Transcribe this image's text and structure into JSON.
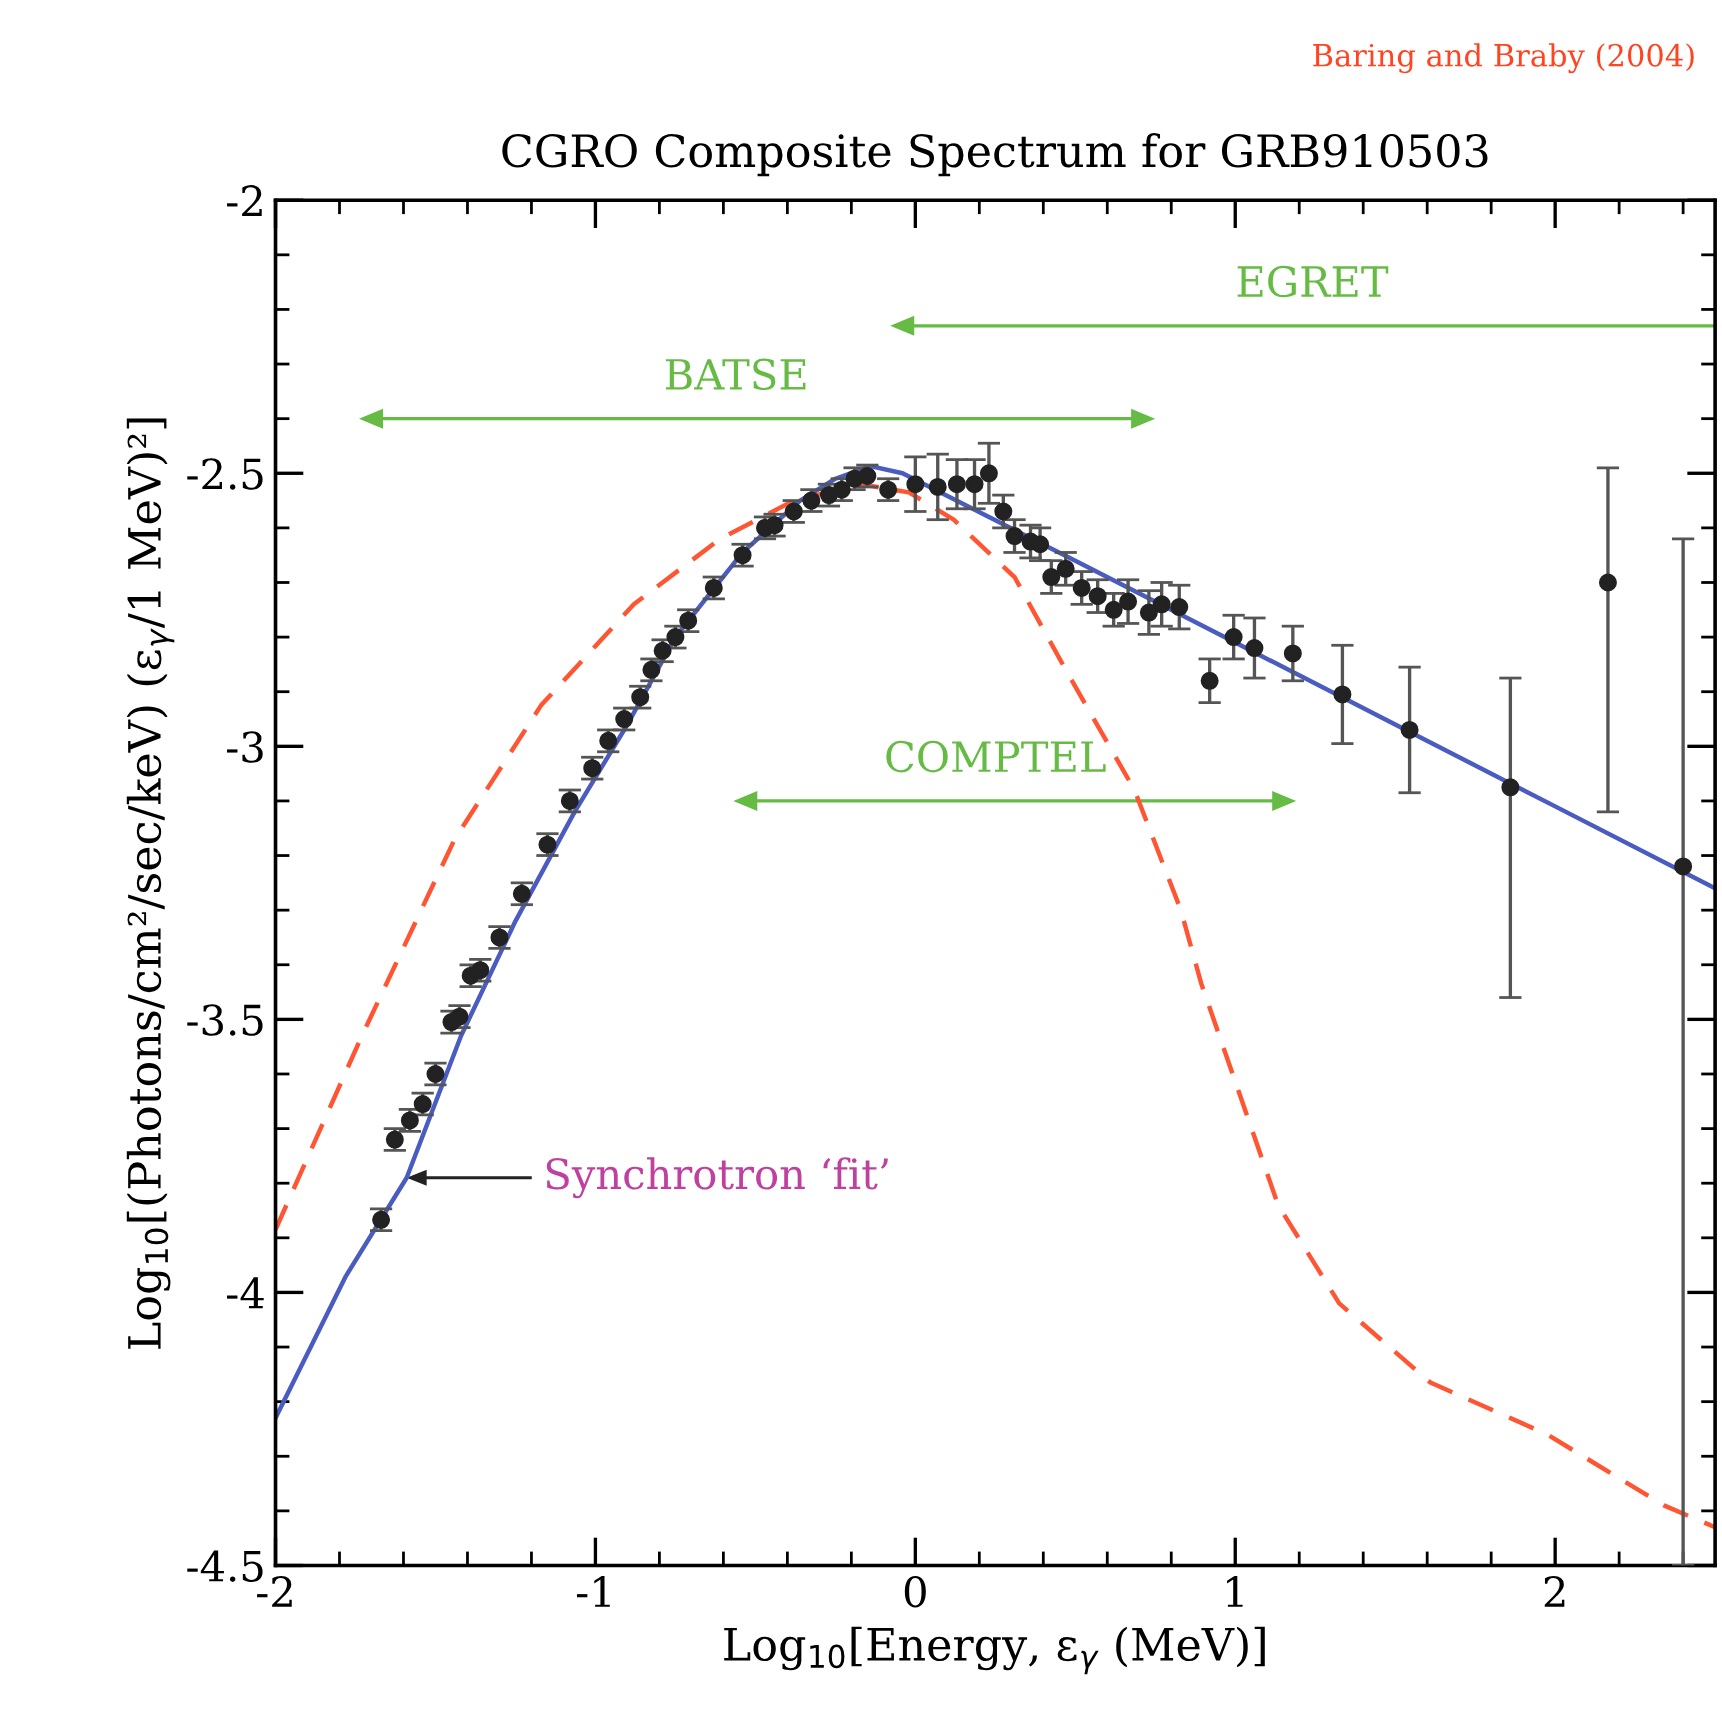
{
  "chart_data": {
    "type": "scatter",
    "title": "CGRO Composite Spectrum for GRB910503",
    "xlabel": "Log$_{10}$[Energy, ε$_{γ}$ (MeV)]",
    "ylabel": "Log$_{10}$[(Photons/cm²/sec/keV) (ε$_{γ}$/1 MeV)²]",
    "xlim": [
      -2,
      2.5
    ],
    "ylim": [
      -4.5,
      -2
    ],
    "xticks": [
      -2,
      -1,
      0,
      1,
      2
    ],
    "yticks": [
      -4.5,
      -4,
      -3.5,
      -3,
      -2.5,
      -2
    ],
    "grid": false,
    "series": [
      {
        "type": "line",
        "color": "#ff5533",
        "line_style": "dashed",
        "marker": "none",
        "x": [
          -2,
          -1.73,
          -1.44,
          -1.17,
          -0.88,
          -0.61,
          -0.38,
          -0.17,
          -0.02,
          0.12,
          0.31,
          0.475,
          0.685,
          0.83,
          0.894,
          1.134,
          1.325,
          1.61,
          1.975,
          2.34,
          2.5
        ],
        "values": [
          -3.885,
          -3.53,
          -3.17,
          -2.925,
          -2.74,
          -2.62,
          -2.55,
          -2.52,
          -2.535,
          -2.585,
          -2.69,
          -2.865,
          -3.08,
          -3.3,
          -3.435,
          -3.84,
          -4.02,
          -4.165,
          -4.26,
          -4.39,
          -4.43
        ]
      },
      {
        "type": "line",
        "color": "#4a5cc0",
        "line_style": "solid",
        "marker": "none",
        "x": [
          -2,
          -1.78,
          -1.59,
          -1.42,
          -1.25,
          -1.065,
          -0.9,
          -0.75,
          -0.54,
          -0.36,
          -0.25,
          -0.14,
          -0.04,
          0.5,
          1.0,
          1.5,
          2.0,
          2.5
        ],
        "values": [
          -4.23,
          -3.97,
          -3.79,
          -3.53,
          -3.32,
          -3.12,
          -2.96,
          -2.8,
          -2.645,
          -2.55,
          -2.51,
          -2.487,
          -2.5,
          -2.66,
          -2.81,
          -2.96,
          -3.11,
          -3.26
        ]
      },
      {
        "type": "scatter",
        "color": "#222222",
        "marker": "circle",
        "x": [
          -1.67,
          -1.627,
          -1.58,
          -1.54,
          -1.5,
          -1.45,
          -1.425,
          -1.39,
          -1.36,
          -1.3,
          -1.23,
          -1.15,
          -1.08,
          -1.01,
          -0.96,
          -0.91,
          -0.86,
          -0.825,
          -0.79,
          -0.75,
          -0.71,
          -0.63,
          -0.54,
          -0.47,
          -0.44,
          -0.38,
          -0.325,
          -0.27,
          -0.23,
          -0.19,
          -0.15,
          -0.085,
          0.0,
          0.07,
          0.13,
          0.185,
          0.23,
          0.275,
          0.31,
          0.36,
          0.39,
          0.425,
          0.47,
          0.52,
          0.57,
          0.62,
          0.665,
          0.73,
          0.77,
          0.825,
          0.92,
          0.995,
          1.06,
          1.18,
          1.335,
          1.545,
          1.86,
          2.165,
          2.4
        ],
        "values": [
          -3.867,
          -3.72,
          -3.685,
          -3.655,
          -3.6,
          -3.505,
          -3.495,
          -3.42,
          -3.41,
          -3.35,
          -3.27,
          -3.18,
          -3.1,
          -3.04,
          -2.99,
          -2.95,
          -2.91,
          -2.86,
          -2.825,
          -2.8,
          -2.77,
          -2.71,
          -2.65,
          -2.6,
          -2.595,
          -2.57,
          -2.55,
          -2.54,
          -2.53,
          -2.51,
          -2.505,
          -2.53,
          -2.52,
          -2.525,
          -2.52,
          -2.52,
          -2.5,
          -2.57,
          -2.615,
          -2.625,
          -2.63,
          -2.69,
          -2.675,
          -2.71,
          -2.725,
          -2.75,
          -2.735,
          -2.755,
          -2.74,
          -2.745,
          -2.88,
          -2.8,
          -2.82,
          -2.83,
          -2.905,
          -2.97,
          -3.075,
          -2.7,
          -3.22
        ],
        "errors": [
          0.02,
          0.02,
          0.02,
          0.02,
          0.02,
          0.02,
          0.02,
          0.02,
          0.02,
          0.02,
          0.02,
          0.02,
          0.02,
          0.02,
          0.02,
          0.02,
          0.02,
          0.02,
          0.02,
          0.02,
          0.02,
          0.02,
          0.02,
          0.02,
          0.02,
          0.02,
          0.02,
          0.02,
          0.02,
          0.02,
          0.02,
          0.02,
          0.05,
          0.06,
          0.045,
          0.045,
          0.055,
          0.03,
          0.03,
          0.03,
          0.03,
          0.03,
          0.03,
          0.03,
          0.03,
          0.03,
          0.04,
          0.04,
          0.04,
          0.04,
          0.04,
          0.04,
          0.055,
          0.05,
          0.09,
          0.115,
          [
            -3.46,
            -2.875
          ],
          [
            -3.12,
            -2.49
          ],
          [
            -4.5,
            -2.62
          ]
        ]
      }
    ],
    "annotations": [
      "Baring and Braby (2004)",
      "Synchrotron ‘fit’",
      "EGRET",
      "BATSE",
      "COMPTEL"
    ]
  }
}
